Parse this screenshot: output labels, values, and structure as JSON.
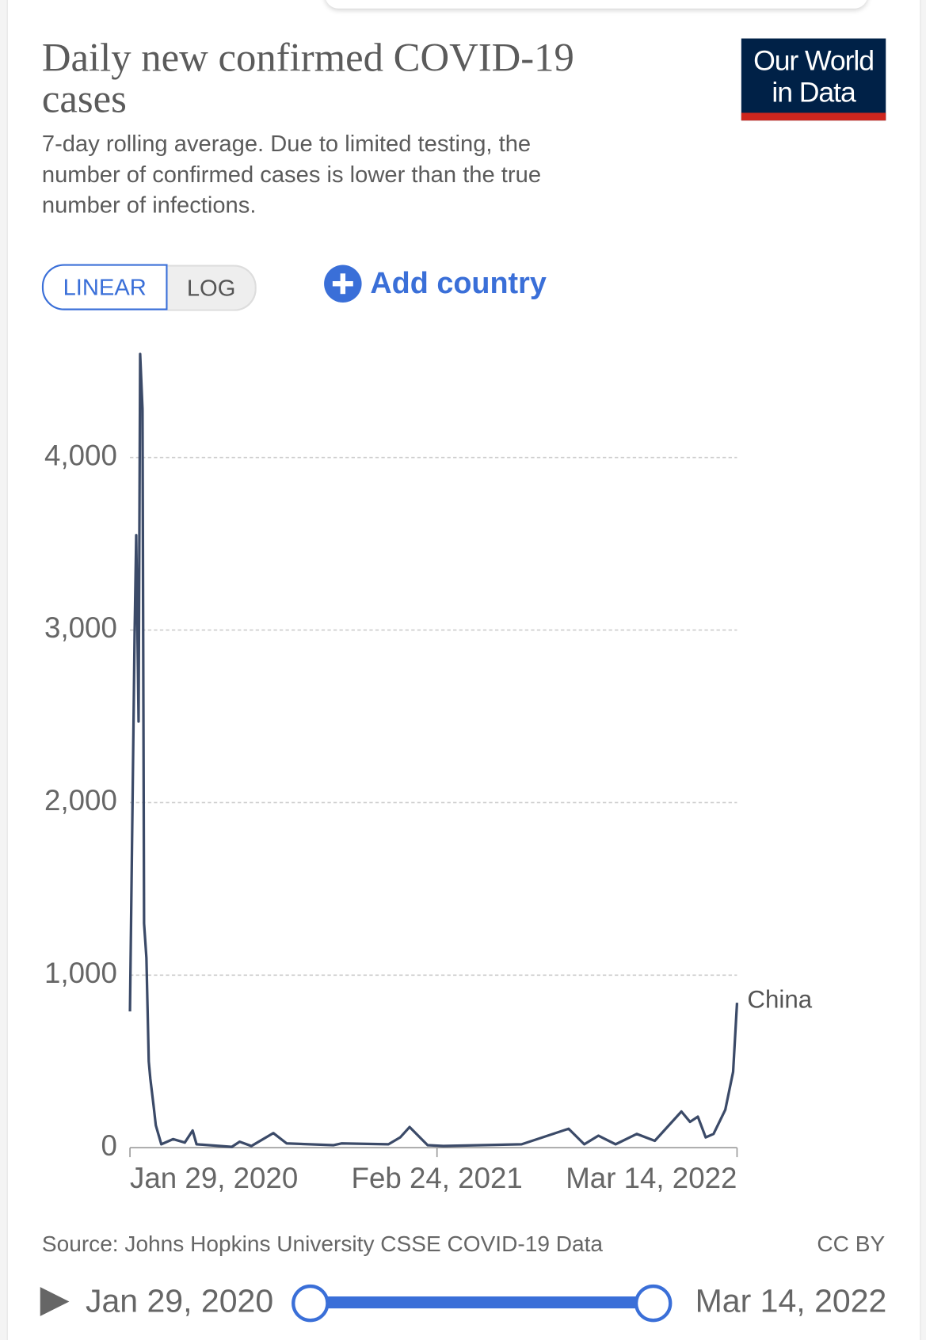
{
  "page": {
    "title": "Daily new confirmed COVID-19 cases",
    "subtitle": "7-day rolling average. Due to limited testing, the number of confirmed cases is lower than the true number of infections.",
    "logo": "Our World in Data",
    "scale_toggle": [
      "LINEAR",
      "LOG"
    ],
    "add_button": "Add country",
    "source": "Source: Johns Hopkins University CSSE COVID-19 Data",
    "license": "CC BY",
    "timeline": {
      "start": "Jan 29, 2020",
      "end": "Mar 14, 2022"
    }
  },
  "chart_data": {
    "type": "line",
    "x": [
      "2020-01-29",
      "2020-02-04",
      "2020-02-06",
      "2020-02-09",
      "2020-02-11",
      "2020-02-14",
      "2020-02-16",
      "2020-02-19",
      "2020-02-22",
      "2020-02-24",
      "2020-02-28",
      "2020-03-02",
      "2020-03-09",
      "2020-03-24",
      "2020-04-08",
      "2020-04-18",
      "2020-04-23",
      "2020-06-07",
      "2020-06-17",
      "2020-07-02",
      "2020-07-30",
      "2020-08-16",
      "2020-10-15",
      "2020-10-25",
      "2020-12-24",
      "2021-01-08",
      "2021-01-20",
      "2021-02-12",
      "2021-03-04",
      "2021-06-12",
      "2021-08-11",
      "2021-08-31",
      "2021-09-18",
      "2021-10-10",
      "2021-11-06",
      "2021-11-29",
      "2021-12-09",
      "2022-01-02",
      "2022-01-13",
      "2022-01-23",
      "2022-02-02",
      "2022-02-12",
      "2022-02-27",
      "2022-03-09",
      "2022-03-14"
    ],
    "series": [
      {
        "name": "China",
        "color": "#3b4a68",
        "values": [
          790,
          3000,
          3550,
          2470,
          4600,
          4280,
          1300,
          1100,
          500,
          400,
          250,
          130,
          20,
          50,
          30,
          100,
          20,
          5,
          35,
          10,
          85,
          25,
          15,
          25,
          20,
          60,
          120,
          15,
          10,
          20,
          110,
          20,
          70,
          20,
          80,
          40,
          90,
          210,
          150,
          180,
          60,
          80,
          220,
          440,
          840
        ]
      }
    ],
    "xlim": [
      "2020-01-29",
      "2022-03-14"
    ],
    "xticks": [
      {
        "value": "2020-01-29",
        "label": "Jan 29, 2020"
      },
      {
        "value": "2021-02-24",
        "label": "Feb 24, 2021"
      },
      {
        "value": "2022-03-14",
        "label": "Mar 14, 2022"
      }
    ],
    "ylim": [
      0,
      4700
    ],
    "yticks": [
      0,
      {
        "value": 1000,
        "label": "1,000"
      },
      {
        "value": 2000,
        "label": "2,000"
      },
      {
        "value": 3000,
        "label": "3,000"
      },
      {
        "value": 4000,
        "label": "4,000"
      }
    ],
    "grid": true,
    "log_scale": false
  }
}
